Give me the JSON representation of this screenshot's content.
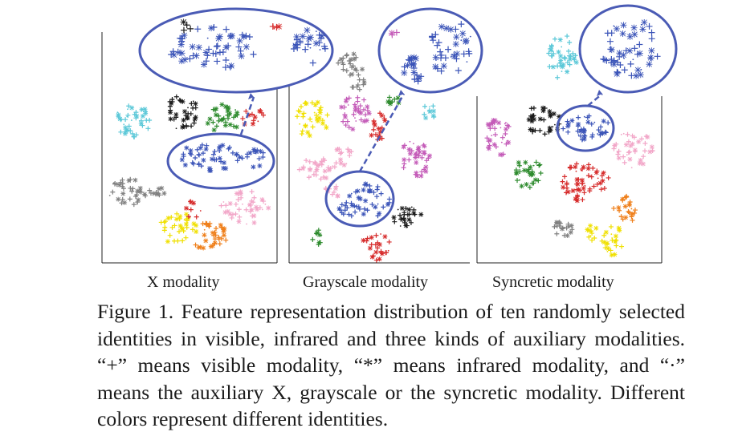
{
  "figure": {
    "panels": [
      {
        "label": "X modality"
      },
      {
        "label": "Grayscale modality"
      },
      {
        "label": "Syncretic modality"
      }
    ],
    "identity_colors": [
      "#d62b2b",
      "#1a1a1a",
      "#2e8b2e",
      "#5bc8d8",
      "#ef7f1a",
      "#f0e000",
      "#f2a6c8",
      "#808080",
      "#c45bb8",
      "#3b54b8"
    ],
    "highlight_color": "#4a5bb5",
    "marker_legend": {
      "visible": "+",
      "infrared": "*",
      "auxiliary": "·"
    }
  },
  "caption": {
    "text": "Figure 1. Feature representation distribution of ten randomly selected identities in visible, infrared and three kinds of auxiliary modalities. “+” means visible modality, “*” means infrared modality, and “·” means the auxiliary X, grayscale or the syncretic modality. Different colors represent different identities."
  }
}
